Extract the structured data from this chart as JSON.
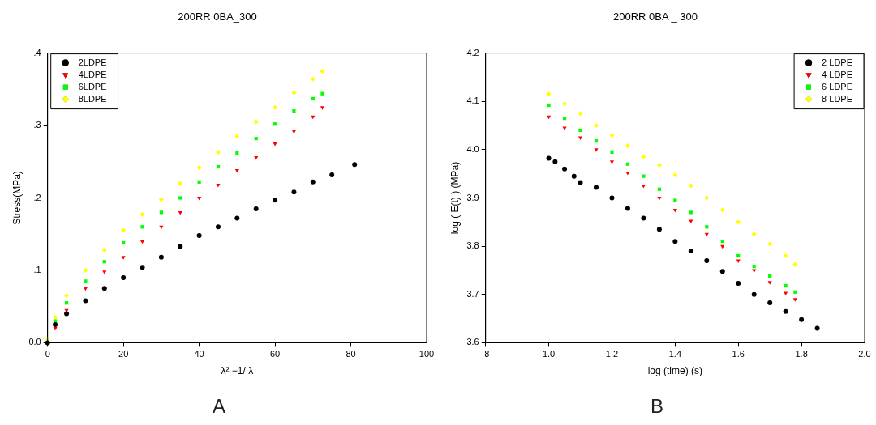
{
  "chart_data": [
    {
      "type": "scatter",
      "title": "200RR 0BA_300",
      "xlabel": "λ² −1/ λ",
      "ylabel": "Stress(MPa)",
      "annotations": [
        "A"
      ],
      "xlim": [
        0,
        100
      ],
      "xticks": [
        0,
        20,
        40,
        60,
        80,
        100
      ],
      "ylim": [
        0,
        0.4
      ],
      "yticks": [
        {
          "value": 0,
          "label": "0.0"
        },
        {
          "value": 0.1,
          "label": ".1"
        },
        {
          "value": 0.2,
          "label": ".2"
        },
        {
          "value": 0.3,
          "label": ".3"
        },
        {
          "value": 0.4,
          "label": ".4"
        }
      ],
      "grid": false,
      "legend": "top left",
      "series": [
        {
          "name": "2LDPE",
          "color": "#000000",
          "marker": "circle",
          "x": [
            0,
            2,
            5,
            10,
            15,
            20,
            25,
            30,
            35,
            40,
            45,
            50,
            55,
            60,
            65,
            70,
            75,
            81
          ],
          "values": [
            0,
            0.025,
            0.04,
            0.058,
            0.075,
            0.09,
            0.104,
            0.118,
            0.133,
            0.148,
            0.16,
            0.172,
            0.185,
            0.197,
            0.208,
            0.222,
            0.232,
            0.246
          ]
        },
        {
          "name": "4LDPE",
          "color": "#ff0000",
          "marker": "triangle",
          "x": [
            2,
            5,
            10,
            15,
            20,
            25,
            30,
            35,
            40,
            45,
            50,
            55,
            60,
            65,
            70,
            72.5
          ],
          "values": [
            0.02,
            0.045,
            0.075,
            0.098,
            0.118,
            0.14,
            0.16,
            0.18,
            0.2,
            0.218,
            0.238,
            0.256,
            0.275,
            0.292,
            0.312,
            0.325
          ]
        },
        {
          "name": "6LDPE",
          "color": "#00ff00",
          "marker": "square",
          "x": [
            2,
            5,
            10,
            15,
            20,
            25,
            30,
            35,
            40,
            45,
            50,
            55,
            60,
            65,
            70,
            72.5
          ],
          "values": [
            0.03,
            0.055,
            0.085,
            0.112,
            0.138,
            0.16,
            0.18,
            0.2,
            0.222,
            0.243,
            0.262,
            0.282,
            0.302,
            0.32,
            0.337,
            0.344
          ]
        },
        {
          "name": "8LDPE",
          "color": "#ffff00",
          "marker": "diamond",
          "x": [
            0,
            2,
            5,
            10,
            15,
            20,
            25,
            30,
            35,
            40,
            45,
            50,
            55,
            60,
            65,
            70,
            72.5
          ],
          "values": [
            0.005,
            0.035,
            0.065,
            0.1,
            0.128,
            0.155,
            0.177,
            0.198,
            0.22,
            0.242,
            0.263,
            0.285,
            0.305,
            0.325,
            0.345,
            0.364,
            0.375
          ]
        }
      ]
    },
    {
      "type": "scatter",
      "title": "200RR 0BA _ 300",
      "xlabel": "log (time) (s)",
      "ylabel": "log ( E(t) ) (MPa)",
      "annotations": [
        "B"
      ],
      "xlim": [
        0.8,
        2.0
      ],
      "xticks": [
        {
          "value": 0.8,
          "label": ".8"
        },
        {
          "value": 1.0,
          "label": "1.0"
        },
        {
          "value": 1.2,
          "label": "1.2"
        },
        {
          "value": 1.4,
          "label": "1.4"
        },
        {
          "value": 1.6,
          "label": "1.6"
        },
        {
          "value": 1.8,
          "label": "1.8"
        },
        {
          "value": 2.0,
          "label": "2.0"
        }
      ],
      "ylim": [
        3.6,
        4.2
      ],
      "yticks": [
        {
          "value": 3.6,
          "label": "3.6"
        },
        {
          "value": 3.7,
          "label": "3.7"
        },
        {
          "value": 3.8,
          "label": "3.8"
        },
        {
          "value": 3.9,
          "label": "3.9"
        },
        {
          "value": 4.0,
          "label": "4.0"
        },
        {
          "value": 4.1,
          "label": "4.1"
        },
        {
          "value": 4.2,
          "label": "4.2"
        }
      ],
      "grid": false,
      "legend": "top right",
      "series": [
        {
          "name": "2 LDPE",
          "color": "#000000",
          "marker": "circle",
          "x": [
            1.0,
            1.02,
            1.05,
            1.08,
            1.1,
            1.15,
            1.2,
            1.25,
            1.3,
            1.35,
            1.4,
            1.45,
            1.5,
            1.55,
            1.6,
            1.65,
            1.7,
            1.75,
            1.8,
            1.85
          ],
          "values": [
            3.982,
            3.975,
            3.96,
            3.945,
            3.932,
            3.922,
            3.9,
            3.878,
            3.858,
            3.835,
            3.81,
            3.79,
            3.77,
            3.748,
            3.723,
            3.7,
            3.683,
            3.665,
            3.648,
            3.63
          ]
        },
        {
          "name": "4 LDPE",
          "color": "#ff0000",
          "marker": "triangle",
          "x": [
            1.0,
            1.05,
            1.1,
            1.15,
            1.2,
            1.25,
            1.3,
            1.35,
            1.4,
            1.45,
            1.5,
            1.55,
            1.6,
            1.65,
            1.7,
            1.75,
            1.78
          ],
          "values": [
            4.068,
            4.045,
            4.025,
            4.0,
            3.975,
            3.952,
            3.925,
            3.9,
            3.875,
            3.852,
            3.825,
            3.8,
            3.77,
            3.75,
            3.725,
            3.703,
            3.69
          ]
        },
        {
          "name": "6 LDPE",
          "color": "#00ff00",
          "marker": "square",
          "x": [
            1.0,
            1.05,
            1.1,
            1.15,
            1.2,
            1.25,
            1.3,
            1.35,
            1.4,
            1.45,
            1.5,
            1.55,
            1.6,
            1.65,
            1.7,
            1.75,
            1.78
          ],
          "values": [
            4.092,
            4.065,
            4.04,
            4.018,
            3.995,
            3.97,
            3.945,
            3.918,
            3.895,
            3.87,
            3.84,
            3.81,
            3.78,
            3.758,
            3.738,
            3.718,
            3.705
          ]
        },
        {
          "name": "8 LDPE",
          "color": "#ffff00",
          "marker": "diamond",
          "x": [
            1.0,
            1.05,
            1.1,
            1.15,
            1.2,
            1.25,
            1.3,
            1.35,
            1.4,
            1.45,
            1.5,
            1.55,
            1.6,
            1.65,
            1.7,
            1.75,
            1.78
          ],
          "values": [
            4.115,
            4.095,
            4.075,
            4.05,
            4.03,
            4.008,
            3.985,
            3.968,
            3.948,
            3.925,
            3.9,
            3.875,
            3.85,
            3.825,
            3.805,
            3.78,
            3.762
          ]
        }
      ]
    }
  ]
}
